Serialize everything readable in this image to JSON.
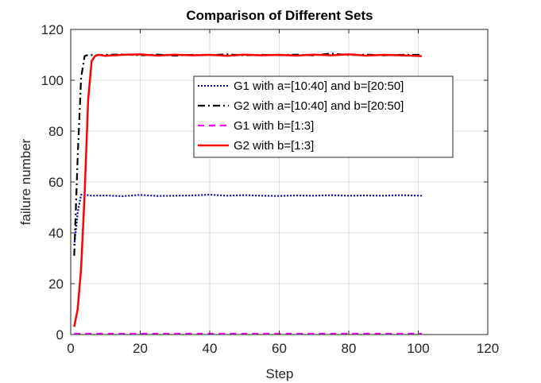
{
  "chart_data": {
    "type": "line",
    "title": "Comparison of Different Sets",
    "xlabel": "Step",
    "ylabel": "failure number",
    "xlim": [
      0,
      120
    ],
    "ylim": [
      0,
      120
    ],
    "xticks": [
      "0",
      "20",
      "40",
      "60",
      "80",
      "100",
      "120"
    ],
    "yticks": [
      "0",
      "20",
      "40",
      "60",
      "80",
      "100",
      "120"
    ],
    "grid": true,
    "legend_position": "top-right",
    "series": [
      {
        "name": "G1 with a=[10:40] and b=[20:50]",
        "color": "#0000cc",
        "style": "dotted",
        "x": [
          1,
          2,
          3,
          4,
          6,
          10,
          15,
          20,
          25,
          30,
          35,
          40,
          45,
          50,
          55,
          60,
          65,
          70,
          75,
          80,
          85,
          90,
          95,
          101
        ],
        "y": [
          35,
          48,
          55,
          55,
          54.6,
          54.7,
          54.4,
          54.9,
          54.5,
          54.6,
          54.7,
          55,
          54.6,
          54.8,
          54.6,
          54.5,
          54.7,
          54.6,
          54.8,
          54.6,
          54.7,
          54.6,
          54.8,
          54.6
        ]
      },
      {
        "name": "G2 with a=[10:40] and b=[20:50]",
        "color": "#000000",
        "style": "dashdot",
        "x": [
          1,
          2,
          3,
          4,
          5,
          7,
          10,
          15,
          20,
          25,
          30,
          35,
          40,
          45,
          50,
          55,
          60,
          65,
          70,
          75,
          80,
          85,
          90,
          95,
          101
        ],
        "y": [
          31,
          70,
          101,
          109.5,
          110,
          109.8,
          110,
          110.2,
          109.8,
          110.1,
          109.7,
          110,
          109.9,
          110.2,
          109.8,
          110,
          109.9,
          110.1,
          109.8,
          110.5,
          109.9,
          110.1,
          109.8,
          110,
          110
        ]
      },
      {
        "name": "G1 with b=[1:3]",
        "color": "#ff00ff",
        "style": "dashed",
        "x": [
          1,
          101
        ],
        "y": [
          0.3,
          0.3
        ]
      },
      {
        "name": "G2 with b=[1:3]",
        "color": "#ff0000",
        "style": "solid",
        "x": [
          1,
          2,
          3,
          4,
          5,
          6,
          7,
          8,
          10,
          15,
          20,
          25,
          30,
          35,
          40,
          45,
          50,
          55,
          60,
          65,
          70,
          75,
          80,
          85,
          90,
          95,
          101
        ],
        "y": [
          3,
          10,
          26,
          55,
          92,
          107.5,
          109.5,
          110,
          109.6,
          110,
          110.2,
          109.7,
          110.1,
          109.8,
          110,
          109.6,
          110.1,
          109.8,
          110,
          109.7,
          110.1,
          109.8,
          110.2,
          109.7,
          110,
          109.8,
          109.5
        ]
      }
    ]
  }
}
